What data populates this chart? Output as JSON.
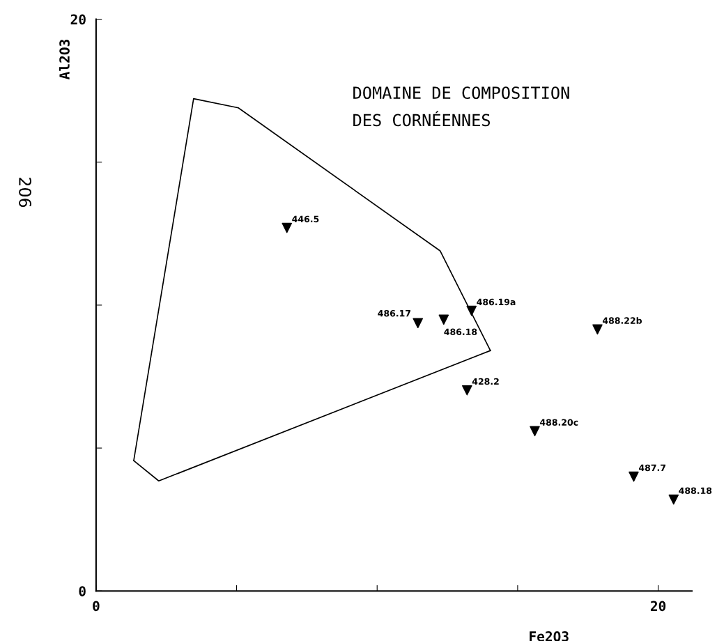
{
  "chart_data": {
    "type": "scatter",
    "xlabel": "Fe2O3",
    "ylabel": "Al2O3",
    "xlim": [
      0,
      21.2
    ],
    "ylim": [
      0,
      20
    ],
    "xticks": [
      0,
      {
        "value": 5,
        "label": null
      },
      {
        "value": 10,
        "label": null
      },
      {
        "value": 15,
        "label": null
      },
      20
    ],
    "yticks": [
      0,
      {
        "value": 5,
        "label": null
      },
      {
        "value": 10,
        "label": null
      },
      {
        "value": 15,
        "label": null
      },
      20
    ],
    "grid": false,
    "legend": false,
    "marker": "triangle",
    "series": [
      {
        "type": "line",
        "marker": "none",
        "color": "#000000",
        "x": [
          1.34,
          3.47,
          5.06,
          12.24,
          14.03
        ],
        "values": [
          4.56,
          17.22,
          16.9,
          11.9,
          8.41
        ]
      },
      {
        "type": "line",
        "marker": "none",
        "color": "#000000",
        "x": [
          1.34,
          2.23,
          14.03
        ],
        "values": [
          4.56,
          3.85,
          8.41
        ]
      },
      {
        "color": "#000000",
        "x": [
          6.79,
          11.45,
          12.37,
          13.36,
          17.84,
          13.2,
          15.61,
          19.13,
          20.55
        ],
        "values": [
          12.7,
          9.37,
          9.49,
          9.8,
          9.15,
          7.02,
          5.59,
          4.0,
          3.2
        ]
      }
    ],
    "annotations": [
      "DOMAINE DE COMPOSITION\nDES CORNÉENNES",
      "206",
      {
        "text": "446.5",
        "x": 6.79,
        "y": 12.7
      },
      {
        "text": "486.17",
        "x": 11.45,
        "y": 9.37
      },
      {
        "text": "486.18",
        "x": 12.37,
        "y": 9.49
      },
      {
        "text": "486.19a",
        "x": 13.36,
        "y": 9.8
      },
      {
        "text": "488.22b",
        "x": 17.84,
        "y": 9.15
      },
      {
        "text": "428.2",
        "x": 13.2,
        "y": 7.02
      },
      {
        "text": "488.20c",
        "x": 15.61,
        "y": 5.59
      },
      {
        "text": "487.7",
        "x": 19.13,
        "y": 4.0
      },
      {
        "text": "488.18",
        "x": 20.55,
        "y": 3.2
      }
    ]
  }
}
